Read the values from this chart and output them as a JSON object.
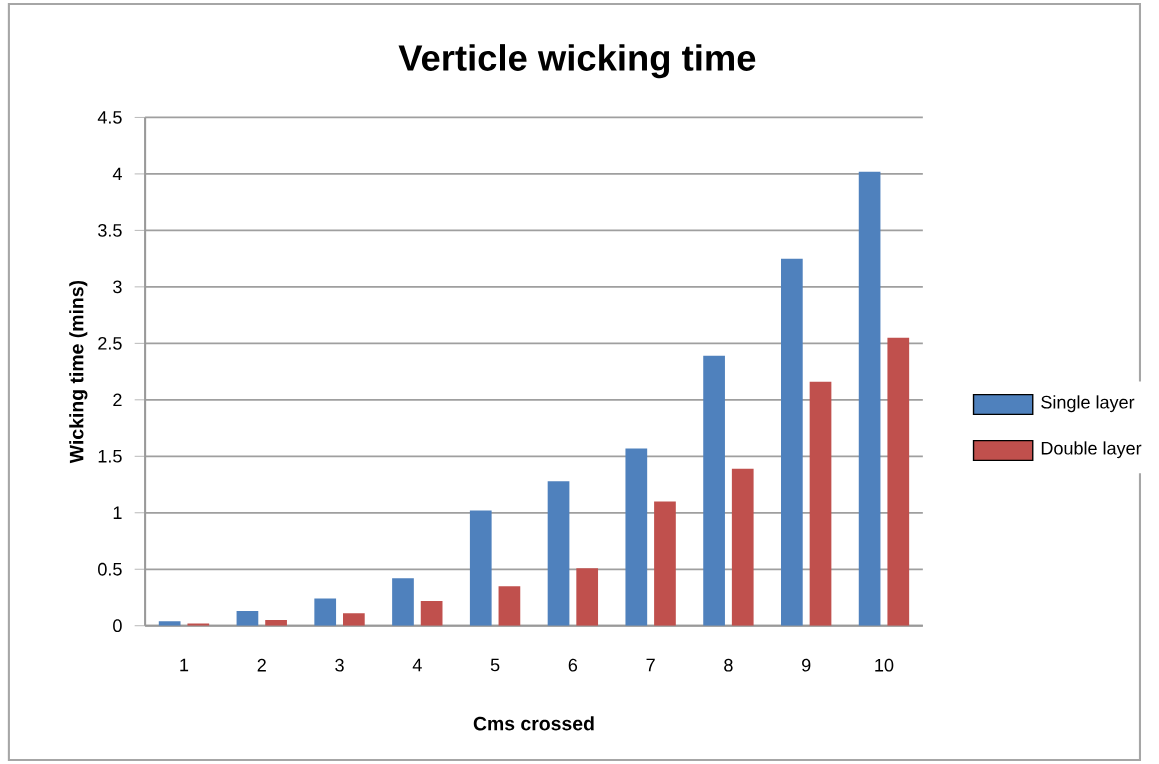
{
  "chart_data": {
    "type": "bar",
    "title": "Verticle wicking time",
    "xlabel": "Cms crossed",
    "ylabel": "Wicking time (mins)",
    "categories": [
      "1",
      "2",
      "3",
      "4",
      "5",
      "6",
      "7",
      "8",
      "9",
      "10"
    ],
    "series": [
      {
        "name": "Single layer",
        "color": "#4f81bd",
        "values": [
          0.04,
          0.13,
          0.24,
          0.42,
          1.02,
          1.28,
          1.57,
          2.39,
          3.25,
          4.02
        ]
      },
      {
        "name": "Double layer",
        "color": "#c0504d",
        "values": [
          0.02,
          0.05,
          0.11,
          0.22,
          0.35,
          0.51,
          1.1,
          1.39,
          2.16,
          2.55
        ]
      }
    ],
    "ylim": [
      0,
      4.5
    ],
    "yticks": [
      0,
      0.5,
      1,
      1.5,
      2,
      2.5,
      3,
      3.5,
      4,
      4.5
    ],
    "grid": "y",
    "legend": "right"
  }
}
